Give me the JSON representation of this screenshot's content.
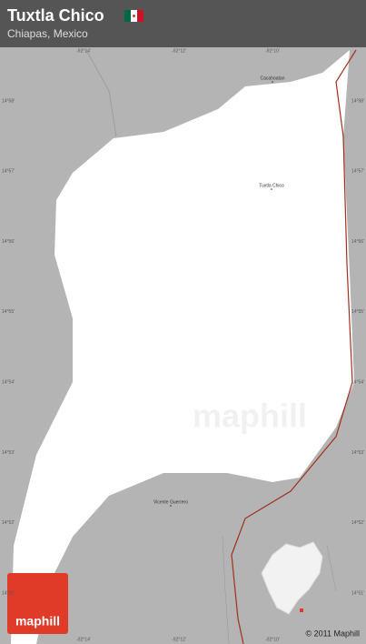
{
  "header": {
    "title": "Tuxtla Chico",
    "subtitle": "Chiapas, Mexico"
  },
  "places": [
    "Cacahoatan",
    "Tuxtla Chico",
    "Vicente Guerrero"
  ],
  "grid": {
    "longitudes": [
      "-92°14'",
      "-92°12'",
      "-92°10'"
    ],
    "latitudes": [
      "14°58'",
      "14°57'",
      "14°56'",
      "14°55'",
      "14°54'",
      "14°53'",
      "14°52'",
      "14°51'"
    ]
  },
  "watermark": "maphill",
  "footer": {
    "logo": "maphill",
    "copyright": "© 2011 Maphill"
  }
}
